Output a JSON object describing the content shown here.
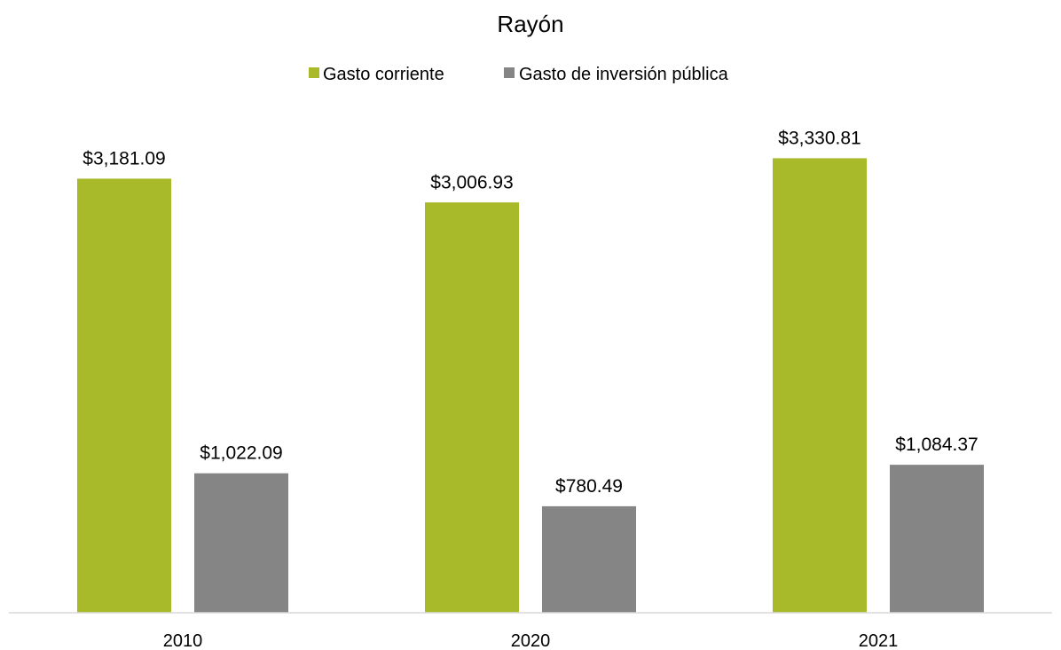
{
  "chart_data": {
    "type": "bar",
    "title": "Rayón",
    "xlabel": "",
    "ylabel": "",
    "categories": [
      "2010",
      "2020",
      "2021"
    ],
    "series": [
      {
        "name": "Gasto corriente",
        "color": "#a8b92a",
        "values": [
          3181.09,
          3006.93,
          3330.81
        ],
        "labels": [
          "$3,181.09",
          "$3,006.93",
          "$3,330.81"
        ]
      },
      {
        "name": "Gasto de inversión pública",
        "color": "#858585",
        "values": [
          1022.09,
          780.49,
          1084.37
        ],
        "labels": [
          "$1,022.09",
          "$780.49",
          "$1,084.37"
        ]
      }
    ],
    "ylim": [
      0,
      3600
    ],
    "y_axis_visible": false,
    "grid": false,
    "legend_position": "top-center",
    "axis_line_color": "#d9d9d9"
  }
}
